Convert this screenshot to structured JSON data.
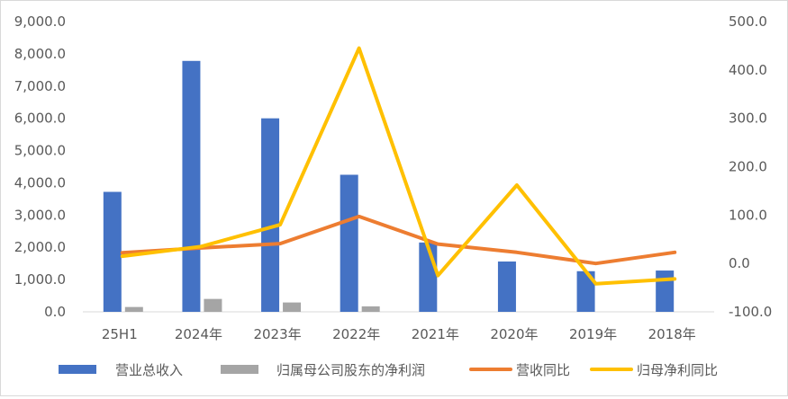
{
  "chart_data": {
    "type": "bar",
    "categories": [
      "25H1",
      "2024年",
      "2023年",
      "2022年",
      "2021年",
      "2020年",
      "2019年",
      "2018年"
    ],
    "y_left": {
      "ylim": [
        0,
        9000
      ],
      "ticks": [
        "0.0",
        "1,000.0",
        "2,000.0",
        "3,000.0",
        "4,000.0",
        "5,000.0",
        "6,000.0",
        "7,000.0",
        "8,000.0",
        "9,000.0"
      ]
    },
    "y_right": {
      "ylim": [
        -100,
        500
      ],
      "ticks": [
        "-100.0",
        "0.0",
        "100.0",
        "200.0",
        "300.0",
        "400.0",
        "500.0"
      ]
    },
    "series": [
      {
        "name": "营业总收入",
        "type": "bar",
        "axis": "left",
        "color": "#4472C4",
        "values": [
          3720,
          7780,
          6000,
          4250,
          2150,
          1560,
          1260,
          1280
        ]
      },
      {
        "name": "归属母公司股东的净利润",
        "type": "bar",
        "axis": "left",
        "color": "#A5A5A5",
        "values": [
          150,
          400,
          290,
          170,
          0,
          0,
          0,
          0
        ]
      },
      {
        "name": "营收同比",
        "type": "line",
        "axis": "right",
        "color": "#ED7D31",
        "values": [
          22,
          32,
          41,
          97,
          40,
          23,
          0,
          23
        ]
      },
      {
        "name": "归母净利同比",
        "type": "line",
        "axis": "right",
        "color": "#FFC000",
        "values": [
          15,
          35,
          80,
          445,
          -25,
          162,
          -42,
          -32
        ]
      }
    ],
    "grid": false,
    "legend": "bottom"
  }
}
